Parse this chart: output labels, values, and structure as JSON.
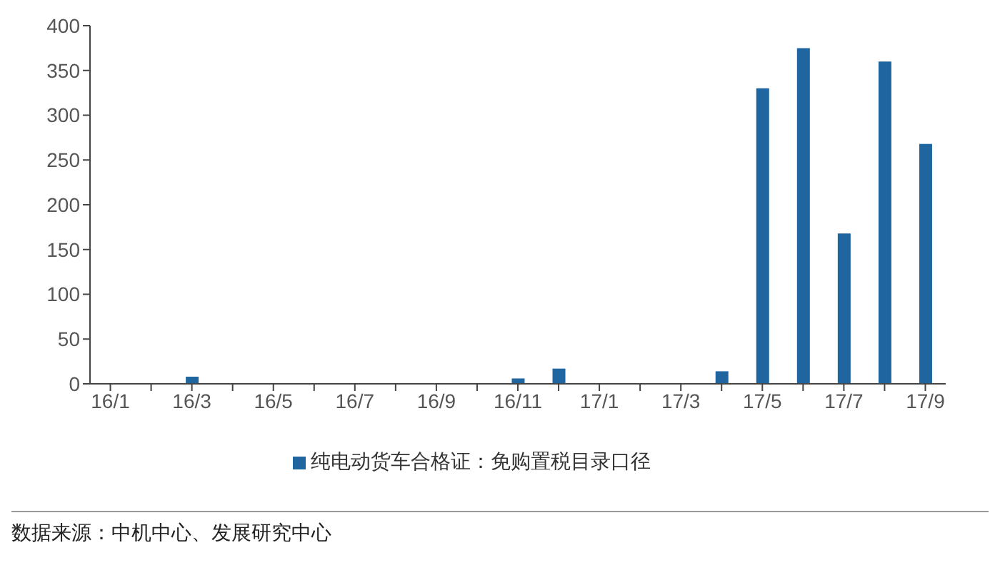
{
  "chart_data": {
    "type": "bar",
    "categories": [
      "16/1",
      null,
      "16/3",
      null,
      "16/5",
      null,
      "16/7",
      null,
      "16/9",
      null,
      "16/11",
      null,
      "17/1",
      null,
      "17/3",
      null,
      "17/5",
      null,
      "17/7",
      null,
      "17/9"
    ],
    "series": [
      {
        "name": "纯电动货车合格证：免购置税目录口径",
        "color": "#1f65a0",
        "values": [
          0,
          0,
          8,
          0,
          0,
          0,
          0,
          0,
          0,
          0,
          6,
          17,
          0,
          0,
          0,
          14,
          330,
          375,
          168,
          360,
          268
        ]
      }
    ],
    "ylim": [
      0,
      400
    ],
    "yticks": [
      0,
      50,
      100,
      150,
      200,
      250,
      300,
      350,
      400
    ],
    "grid": false,
    "legend": "bottom",
    "annotations": [
      "数据来源：中机中心、发展研究中心"
    ]
  }
}
